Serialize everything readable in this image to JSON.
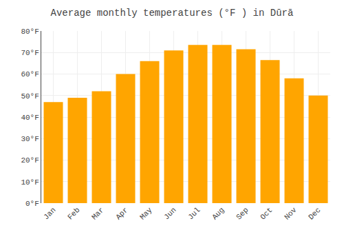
{
  "chart_data": {
    "type": "bar",
    "title": "Average monthly temperatures (°F ) in Dūrā",
    "categories": [
      "Jan",
      "Feb",
      "Mar",
      "Apr",
      "May",
      "Jun",
      "Jul",
      "Aug",
      "Sep",
      "Oct",
      "Nov",
      "Dec"
    ],
    "values": [
      47,
      49,
      52,
      60,
      66,
      71,
      73.5,
      73.5,
      71.5,
      66.5,
      58,
      50
    ],
    "color": "#FFA500",
    "ylim": [
      0,
      80
    ],
    "yticks": [
      {
        "value": 0,
        "label": "0°F"
      },
      {
        "value": 10,
        "label": "10°F"
      },
      {
        "value": 20,
        "label": "20°F"
      },
      {
        "value": 30,
        "label": "30°F"
      },
      {
        "value": 40,
        "label": "40°F"
      },
      {
        "value": 50,
        "label": "50°F"
      },
      {
        "value": 60,
        "label": "60°F"
      },
      {
        "value": 70,
        "label": "70°F"
      },
      {
        "value": 80,
        "label": "80°F"
      }
    ],
    "grid": true
  }
}
